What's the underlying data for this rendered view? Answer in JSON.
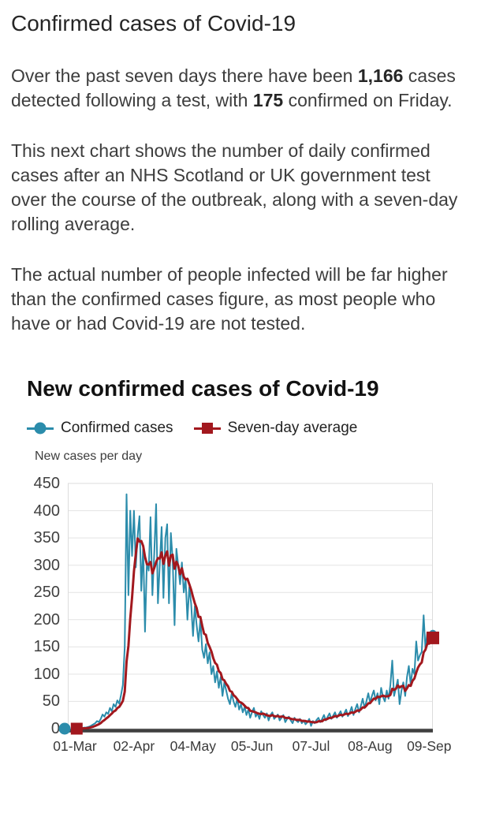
{
  "article": {
    "heading": "Confirmed cases of Covid-19",
    "p1": {
      "t1": "Over the past seven days there have been ",
      "b1": "1,166",
      "t2": " cases detected following a test, with ",
      "b2": "175",
      "t3": " confirmed on Friday."
    },
    "p2": "This next chart shows the number of daily confirmed cases after an NHS Scotland or UK government test over the course of the outbreak, along with a seven-day rolling average.",
    "p3": "The actual number of people infected will be far higher than the confirmed cases figure, as most people who have or had Covid-19 are not tested."
  },
  "chart": {
    "title": "New confirmed cases of Covid-19",
    "axis_title": "New cases per day",
    "legend": [
      {
        "label": "Confirmed cases",
        "marker": "circle",
        "color": "#2b8cab"
      },
      {
        "label": "Seven-day average",
        "marker": "square",
        "color": "#a2181e"
      }
    ]
  },
  "chart_data": {
    "type": "line",
    "title": "New confirmed cases of Covid-19",
    "ylabel": "New cases per day",
    "ylim": [
      0,
      450
    ],
    "ytick_step": 50,
    "grid": true,
    "legend_position": "top",
    "x_range": "01-Mar to 11-Sep (daily)",
    "x_tick_labels": [
      "01-Mar",
      "02-Apr",
      "04-May",
      "05-Jun",
      "07-Jul",
      "08-Aug",
      "09-Sep"
    ],
    "x_tick_indices": [
      0,
      32,
      64,
      96,
      128,
      160,
      192
    ],
    "colors": {
      "cases": "#2b8cab",
      "average": "#a2181e",
      "grid": "#e3e3e3",
      "plot_border": "#dcdcdc",
      "axis": "#3f3f3f"
    },
    "series": [
      {
        "name": "Confirmed cases",
        "color": "#2b8cab",
        "values": [
          0,
          0,
          0,
          1,
          1,
          2,
          2,
          3,
          4,
          6,
          8,
          10,
          14,
          12,
          18,
          26,
          22,
          30,
          27,
          38,
          32,
          45,
          40,
          52,
          46,
          62,
          80,
          150,
          430,
          245,
          400,
          317,
          400,
          296,
          355,
          390,
          253,
          335,
          178,
          306,
          290,
          388,
          245,
          320,
          412,
          230,
          300,
          370,
          240,
          350,
          375,
          230,
          359,
          310,
          190,
          330,
          300,
          265,
          305,
          250,
          275,
          200,
          260,
          230,
          170,
          225,
          190,
          160,
          200,
          145,
          130,
          155,
          120,
          140,
          100,
          115,
          85,
          105,
          75,
          95,
          60,
          85,
          70,
          55,
          45,
          65,
          50,
          40,
          55,
          35,
          45,
          30,
          40,
          25,
          35,
          20,
          30,
          38,
          22,
          28,
          18,
          32,
          25,
          20,
          28,
          15,
          25,
          30,
          18,
          22,
          26,
          15,
          20,
          25,
          12,
          18,
          22,
          15,
          10,
          20,
          15,
          12,
          18,
          10,
          15,
          8,
          12,
          18,
          5,
          14,
          10,
          16,
          20,
          12,
          18,
          25,
          15,
          22,
          28,
          18,
          24,
          30,
          20,
          26,
          32,
          22,
          28,
          35,
          23,
          30,
          40,
          25,
          36,
          45,
          30,
          42,
          55,
          38,
          50,
          65,
          48,
          60,
          70,
          52,
          65,
          45,
          75,
          58,
          50,
          70,
          55,
          80,
          125,
          60,
          75,
          90,
          45,
          70,
          85,
          60,
          95,
          115,
          80,
          110,
          100,
          160,
          125,
          135,
          141,
          208,
          146,
          176,
          161,
          159,
          175
        ]
      },
      {
        "name": "Seven-day average",
        "color": "#a2181e",
        "derived": "7-day rolling mean of Confirmed cases",
        "last_value": 166.6
      }
    ]
  }
}
